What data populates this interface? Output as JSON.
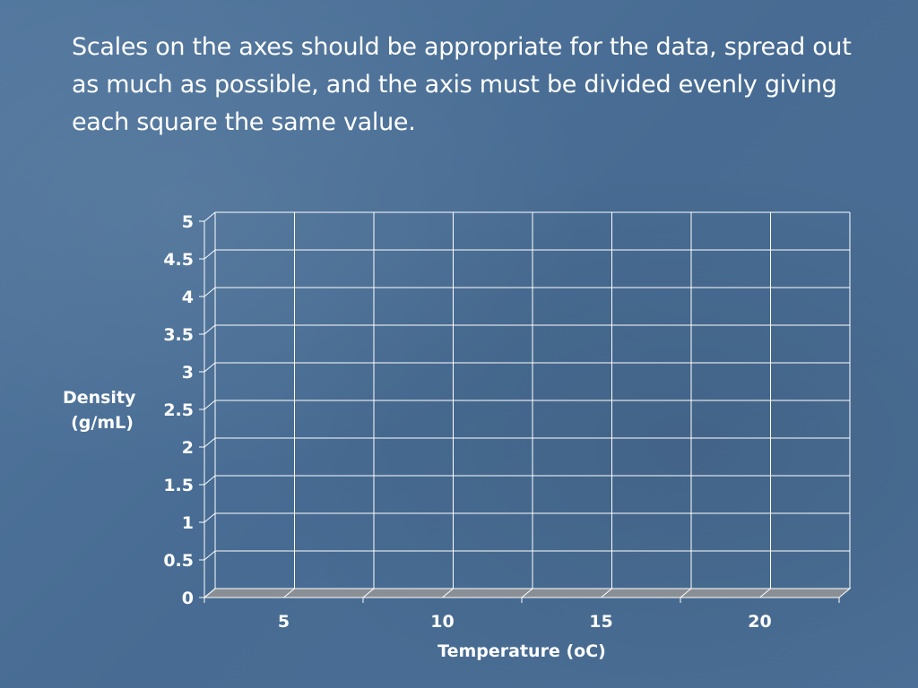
{
  "slide": {
    "text": "Scales on the axes should be appropriate for the data, spread out as much as possible, and the axis must be divided evenly giving each square the same value."
  },
  "chart_data": {
    "type": "bar",
    "categories": [
      "5",
      "10",
      "15",
      "20"
    ],
    "series": [],
    "xlabel": "Temperature (oC)",
    "ylabel_lines": [
      "Density",
      "(g/mL)"
    ],
    "ylim": [
      0,
      5
    ],
    "y_ticks": [
      0,
      0.5,
      1,
      1.5,
      2,
      2.5,
      3,
      3.5,
      4,
      4.5,
      5
    ],
    "grid": true,
    "three_d": true
  }
}
